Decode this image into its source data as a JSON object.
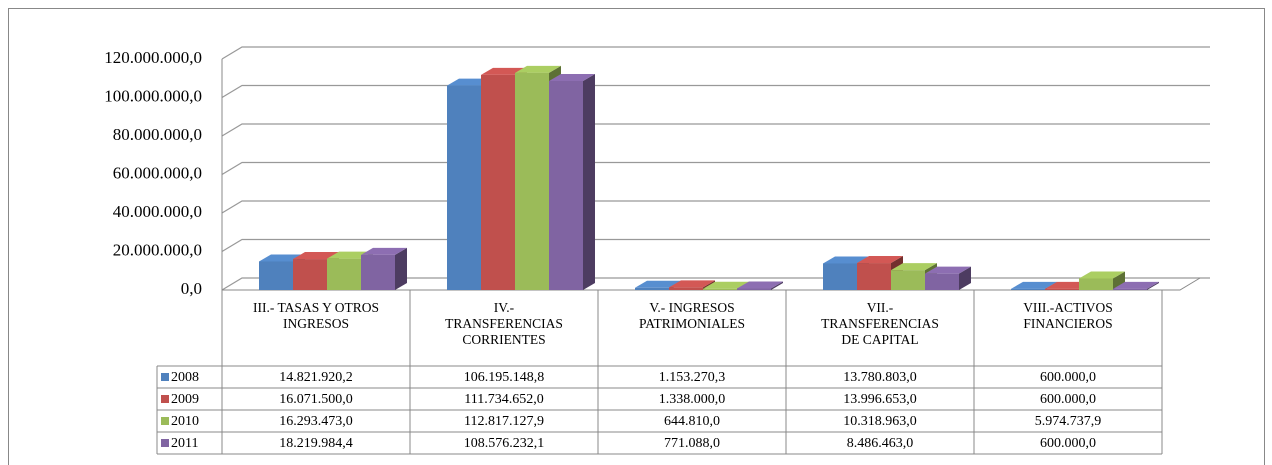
{
  "chart_data": {
    "type": "bar3d",
    "categories": [
      "III.- TASAS Y OTROS INGRESOS",
      "IV.- TRANSFERENCIAS CORRIENTES",
      "V.- INGRESOS PATRIMONIALES",
      "VII.- TRANSFERENCIAS DE CAPITAL",
      "VIII.-ACTIVOS FINANCIEROS"
    ],
    "series": [
      {
        "name": "2008",
        "color": "#4f81bd",
        "values": [
          14821920.2,
          106195148.8,
          1153270.3,
          13780803.0,
          600000.0
        ],
        "value_labels": [
          "14.821.920,2",
          "106.195.148,8",
          "1.153.270,3",
          "13.780.803,0",
          "600.000,0"
        ]
      },
      {
        "name": "2009",
        "color": "#c0504d",
        "values": [
          16071500.0,
          111734652.0,
          1338000.0,
          13996653.0,
          600000.0
        ],
        "value_labels": [
          "16.071.500,0",
          "111.734.652,0",
          "1.338.000,0",
          "13.996.653,0",
          "600.000,0"
        ]
      },
      {
        "name": "2010",
        "color": "#9bbb59",
        "values": [
          16293473.0,
          112817127.9,
          644810.0,
          10318963.0,
          5974737.9
        ],
        "value_labels": [
          "16.293.473,0",
          "112.817.127,9",
          "644.810,0",
          "10.318.963,0",
          "5.974.737,9"
        ]
      },
      {
        "name": "2011",
        "color": "#8064a2",
        "values": [
          18219984.4,
          108576232.1,
          771088.0,
          8486463.0,
          600000.0
        ],
        "value_labels": [
          "18.219.984,4",
          "108.576.232,1",
          "771.088,0",
          "8.486.463,0",
          "600.000,0"
        ]
      }
    ],
    "ylim": [
      0,
      120000000
    ],
    "yticks": [
      {
        "value": 0,
        "label": "0,0"
      },
      {
        "value": 20000000,
        "label": "20.000.000,0"
      },
      {
        "value": 40000000,
        "label": "40.000.000,0"
      },
      {
        "value": 60000000,
        "label": "60.000.000,0"
      },
      {
        "value": 80000000,
        "label": "80.000.000,0"
      },
      {
        "value": 100000000,
        "label": "100.000.000,0"
      },
      {
        "value": 120000000,
        "label": "120.000.000,0"
      }
    ],
    "grid": true,
    "legend": "table"
  }
}
